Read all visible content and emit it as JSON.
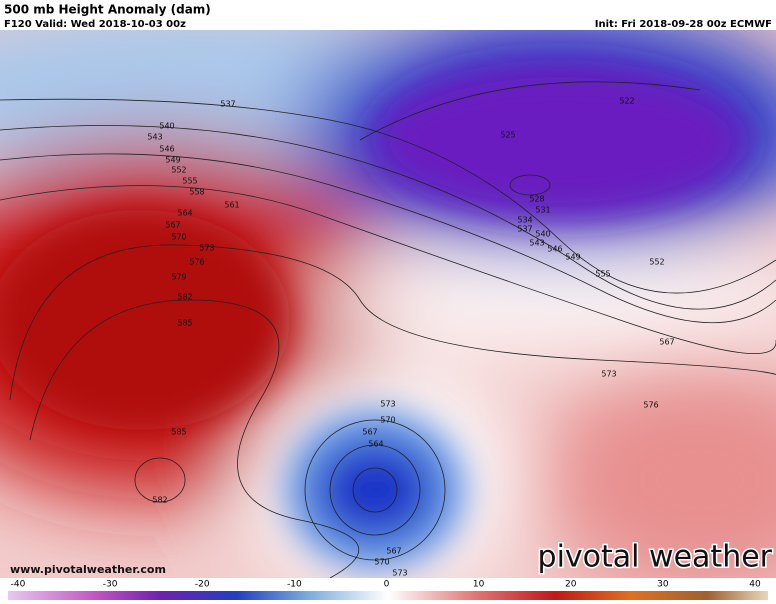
{
  "header": {
    "title": "500 mb Height Anomaly (dam)",
    "valid": "F120 Valid: Wed 2018-10-03 00z",
    "init": "Init: Fri 2018-09-28 00z ECMWF"
  },
  "map": {
    "contour_labels": [
      537,
      540,
      543,
      546,
      549,
      552,
      555,
      558,
      561,
      564,
      567,
      570,
      573,
      576,
      579,
      582,
      585,
      585,
      582,
      522,
      525,
      528,
      531,
      534,
      537,
      540,
      543,
      546,
      549,
      552,
      555,
      567,
      573,
      576,
      573,
      570,
      567,
      564,
      567,
      570,
      573
    ]
  },
  "footer": {
    "website": "www.pivotalweather.com",
    "brand": "pivotal weather"
  },
  "colorbar": {
    "ticks": [
      -40,
      -30,
      -20,
      -10,
      0,
      10,
      20,
      30,
      40
    ]
  }
}
